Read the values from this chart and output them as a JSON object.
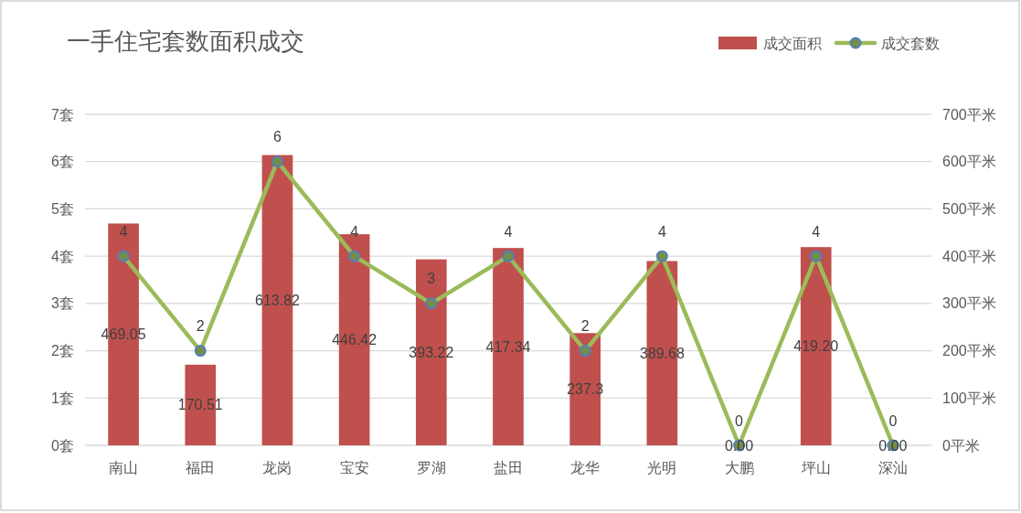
{
  "chart_data": {
    "type": "bar",
    "title": "一手住宅套数面积成交",
    "categories": [
      "南山",
      "福田",
      "龙岗",
      "宝安",
      "罗湖",
      "盐田",
      "龙华",
      "光明",
      "大鹏",
      "坪山",
      "深汕"
    ],
    "series": [
      {
        "name": "成交面积",
        "axis": "y2",
        "color": "#c0504d",
        "values": [
          469.05,
          170.51,
          613.82,
          446.42,
          393.22,
          417.34,
          237.3,
          389.68,
          0,
          419.2,
          0
        ],
        "value_labels": [
          "469.05",
          "170.51",
          "613.82",
          "446.42",
          "393.22",
          "417.34",
          "237.3",
          "389.68",
          "0.00",
          "419.20",
          "0.00"
        ]
      },
      {
        "name": "成交套数",
        "type": "line",
        "axis": "y",
        "color": "#9bbb59",
        "values": [
          4,
          2,
          6,
          4,
          3,
          4,
          2,
          4,
          0,
          4,
          0
        ],
        "marker": "circle",
        "data_labels": true
      }
    ],
    "ylim": [
      0,
      7
    ],
    "yticks": [
      {
        "value": 0,
        "label": "0套"
      },
      {
        "value": 1,
        "label": "1套"
      },
      {
        "value": 2,
        "label": "2套"
      },
      {
        "value": 3,
        "label": "3套"
      },
      {
        "value": 4,
        "label": "4套"
      },
      {
        "value": 5,
        "label": "5套"
      },
      {
        "value": 6,
        "label": "6套"
      },
      {
        "value": 7,
        "label": "7套"
      }
    ],
    "y2lim": [
      0,
      700
    ],
    "y2ticks": [
      {
        "value": 0,
        "label": "0平米"
      },
      {
        "value": 100,
        "label": "100平米"
      },
      {
        "value": 200,
        "label": "200平米"
      },
      {
        "value": 300,
        "label": "300平米"
      },
      {
        "value": 400,
        "label": "400平米"
      },
      {
        "value": 500,
        "label": "500平米"
      },
      {
        "value": 600,
        "label": "600平米"
      },
      {
        "value": 700,
        "label": "700平米"
      }
    ],
    "grid": "y",
    "legend": "top right"
  }
}
